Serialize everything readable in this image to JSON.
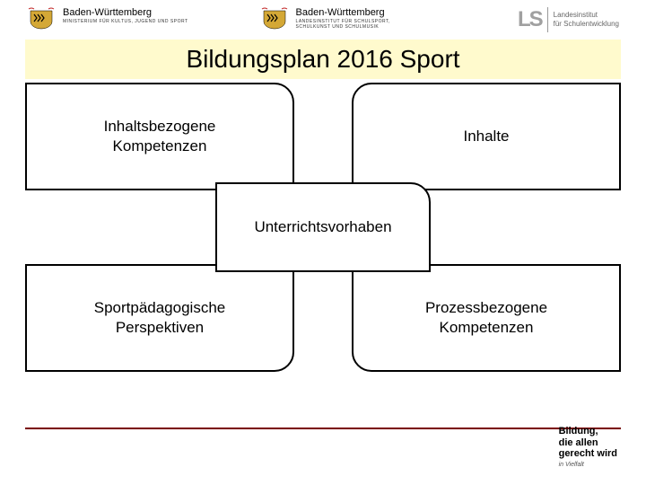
{
  "header": {
    "logo1": {
      "title": "Baden-Württemberg",
      "subtitle": "MINISTERIUM FÜR KULTUS, JUGEND UND SPORT"
    },
    "logo2": {
      "title": "Baden-Württemberg",
      "subtitle": "LANDESINSTITUT FÜR SCHULSPORT, SCHULKUNST UND SCHULMUSIK"
    },
    "logo3": {
      "mark": "LS",
      "line1": "Landesinstitut",
      "line2": "für Schulentwicklung"
    }
  },
  "title": "Bildungsplan 2016 Sport",
  "diagram": {
    "type": "flowchart",
    "background_color": "#ffffff",
    "title_bg": "#fffacd",
    "node_border": "#000000",
    "node_border_width": 2,
    "corner_radius": 22,
    "footer_line_color": "#7a0000",
    "nodes": {
      "top_left": {
        "label": "Inhaltsbezogene\nKompetenzen",
        "fontsize": 17
      },
      "top_right": {
        "label": "Inhalte",
        "fontsize": 17
      },
      "center": {
        "label": "Unterrichtsvorhaben",
        "fontsize": 17
      },
      "bottom_left": {
        "label": "Sportpädagogische\nPerspektiven",
        "fontsize": 17
      },
      "bottom_right": {
        "label": "Prozessbezogene\nKompetenzen",
        "fontsize": 17
      }
    }
  },
  "footer": {
    "line1": "Bildung,",
    "line2": "die allen",
    "line3": "gerecht wird",
    "sub": "in Vielfalt"
  },
  "crest_colors": {
    "gold": "#d4a836",
    "black": "#000000",
    "red": "#c02020"
  }
}
